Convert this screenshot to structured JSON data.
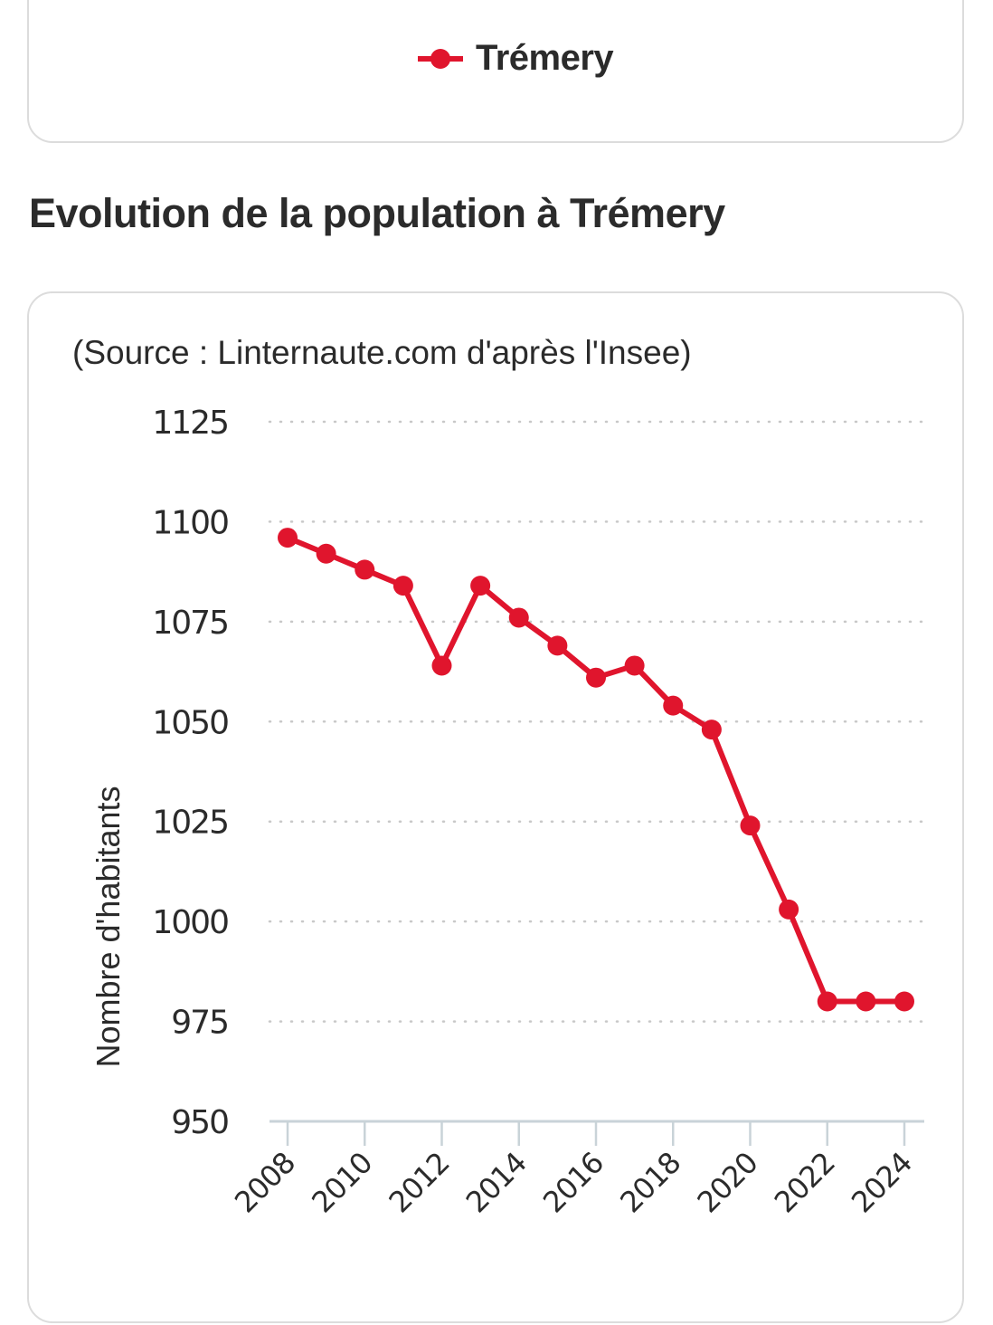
{
  "legend": {
    "series_label": "Trémery",
    "marker_icon": "line-dot-marker-icon"
  },
  "section": {
    "title": "Evolution de la population à Trémery"
  },
  "chart_data": {
    "type": "line",
    "title": "Evolution de la population à Trémery",
    "subtitle": "(Source : Linternaute.com d'après l'Insee)",
    "xlabel": "",
    "ylabel": "Nombre d'habitants",
    "ylim": [
      950,
      1125
    ],
    "yticks": [
      950,
      975,
      1000,
      1025,
      1050,
      1075,
      1100,
      1125
    ],
    "xlim": [
      2008,
      2024
    ],
    "xticks": [
      2008,
      2010,
      2012,
      2014,
      2016,
      2018,
      2020,
      2022,
      2024
    ],
    "grid": "horizontal-dotted",
    "legend_position": "top-center",
    "colors": {
      "series": "#e0152d",
      "axis": "#c9d3d8",
      "grid": "#c8c8c8",
      "text": "#2b2b2b"
    },
    "series": [
      {
        "name": "Trémery",
        "x": [
          2008,
          2009,
          2010,
          2011,
          2012,
          2013,
          2014,
          2015,
          2016,
          2017,
          2018,
          2019,
          2020,
          2021,
          2022,
          2023,
          2024
        ],
        "values": [
          1096,
          1092,
          1088,
          1084,
          1064,
          1084,
          1076,
          1069,
          1061,
          1064,
          1054,
          1048,
          1024,
          1003,
          980,
          980,
          980
        ]
      }
    ]
  }
}
